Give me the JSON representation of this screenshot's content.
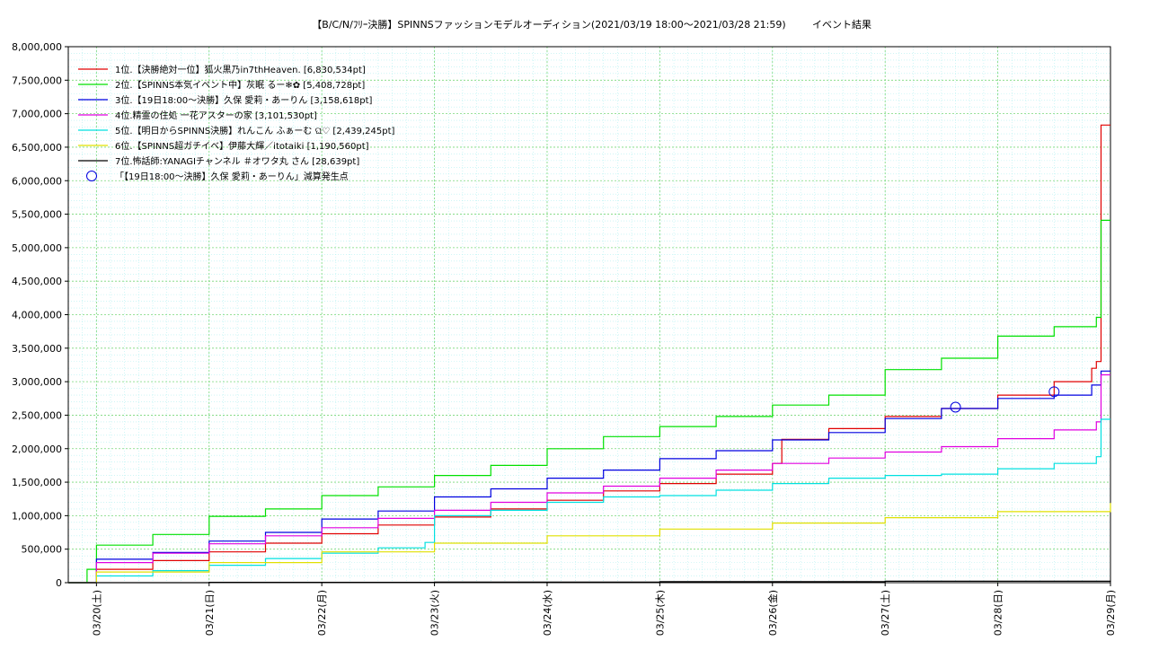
{
  "chart_data": {
    "type": "line",
    "title": "【B/C/N/ﾌﾘｰ決勝】SPINNSファッションモデルオーディション(2021/03/19 18:00～2021/03/28 21:59)",
    "subtitle": "イベント結果",
    "xlabel": "",
    "ylabel": "",
    "x_ticks": [
      "03/20(土)",
      "03/21(日)",
      "03/22(月)",
      "03/23(火)",
      "03/24(水)",
      "03/25(木)",
      "03/26(金)",
      "03/27(土)",
      "03/28(日)",
      "03/29(月)"
    ],
    "xlim": [
      "03/19 18:00",
      "03/29 00:00"
    ],
    "ylim": [
      0,
      8000000
    ],
    "y_ticks": [
      "0",
      "500,000",
      "1,000,000",
      "1,500,000",
      "2,000,000",
      "2,500,000",
      "3,000,000",
      "3,500,000",
      "4,000,000",
      "4,500,000",
      "5,000,000",
      "5,500,000",
      "6,000,000",
      "6,500,000",
      "7,000,000",
      "7,500,000",
      "8,000,000"
    ],
    "grid": true,
    "legend_position": "top-left",
    "series": [
      {
        "name": "1位.【決勝絶対一位】狐火黒乃in7thHeaven. [6,830,534pt]",
        "color": "#e00000",
        "x": [
          "03/19 18:00",
          "03/20 00:00",
          "03/20 12:00",
          "03/21 00:00",
          "03/21 12:00",
          "03/22 00:00",
          "03/22 12:00",
          "03/23 00:00",
          "03/23 12:00",
          "03/24 00:00",
          "03/24 12:00",
          "03/25 00:00",
          "03/25 12:00",
          "03/26 00:00",
          "03/26 02:00",
          "03/26 12:00",
          "03/27 00:00",
          "03/27 12:00",
          "03/28 00:00",
          "03/28 12:00",
          "03/28 20:00",
          "03/28 21:00",
          "03/28 22:00",
          "03/29 00:00"
        ],
        "values": [
          0,
          200000,
          330000,
          460000,
          590000,
          730000,
          860000,
          980000,
          1100000,
          1230000,
          1370000,
          1480000,
          1620000,
          1780000,
          2140000,
          2300000,
          2480000,
          2600000,
          2800000,
          3000000,
          3200000,
          3300000,
          6830534,
          6830534
        ]
      },
      {
        "name": "2位.【SPINNS本気イベント中】灰眠 るー❄✿ [5,408,728pt]",
        "color": "#00e000",
        "x": [
          "03/19 18:00",
          "03/19 22:00",
          "03/20 00:00",
          "03/20 12:00",
          "03/21 00:00",
          "03/21 12:00",
          "03/22 00:00",
          "03/22 12:00",
          "03/23 00:00",
          "03/23 12:00",
          "03/24 00:00",
          "03/24 12:00",
          "03/25 00:00",
          "03/25 12:00",
          "03/26 00:00",
          "03/26 12:00",
          "03/27 00:00",
          "03/27 12:00",
          "03/28 00:00",
          "03/28 12:00",
          "03/28 21:00",
          "03/28 22:00",
          "03/29 00:00"
        ],
        "values": [
          0,
          200000,
          560000,
          720000,
          990000,
          1100000,
          1300000,
          1430000,
          1600000,
          1750000,
          2000000,
          2180000,
          2330000,
          2480000,
          2650000,
          2800000,
          3180000,
          3350000,
          3680000,
          3820000,
          3960000,
          5408728,
          5408728
        ]
      },
      {
        "name": "3位.【19日18:00～決勝】久保 愛莉・あーりん [3,158,618pt]",
        "color": "#0000e0",
        "x": [
          "03/19 18:00",
          "03/20 00:00",
          "03/20 12:00",
          "03/21 00:00",
          "03/21 12:00",
          "03/22 00:00",
          "03/22 12:00",
          "03/23 00:00",
          "03/23 12:00",
          "03/24 00:00",
          "03/24 12:00",
          "03/25 00:00",
          "03/25 12:00",
          "03/26 00:00",
          "03/26 12:00",
          "03/27 00:00",
          "03/27 12:00",
          "03/28 00:00",
          "03/28 12:00",
          "03/28 20:00",
          "03/28 22:00",
          "03/29 00:00"
        ],
        "values": [
          0,
          350000,
          450000,
          620000,
          750000,
          950000,
          1070000,
          1280000,
          1400000,
          1560000,
          1680000,
          1850000,
          1970000,
          2130000,
          2240000,
          2450000,
          2600000,
          2750000,
          2800000,
          2950000,
          3158618,
          3158618
        ]
      },
      {
        "name": "4位.精霊の住処 一花アスターの家 [3,101,530pt]",
        "color": "#e000e0",
        "x": [
          "03/19 18:00",
          "03/20 00:00",
          "03/20 12:00",
          "03/21 00:00",
          "03/21 12:00",
          "03/22 00:00",
          "03/22 12:00",
          "03/23 00:00",
          "03/23 12:00",
          "03/24 00:00",
          "03/24 12:00",
          "03/25 00:00",
          "03/25 12:00",
          "03/26 00:00",
          "03/26 12:00",
          "03/27 00:00",
          "03/27 12:00",
          "03/28 00:00",
          "03/28 12:00",
          "03/28 21:00",
          "03/28 22:00",
          "03/29 00:00"
        ],
        "values": [
          0,
          300000,
          440000,
          580000,
          700000,
          820000,
          960000,
          1080000,
          1200000,
          1340000,
          1440000,
          1560000,
          1680000,
          1780000,
          1860000,
          1950000,
          2030000,
          2150000,
          2280000,
          2400000,
          3101530,
          3101530
        ]
      },
      {
        "name": "5位.【明日からSPINNS決勝】れんこん ふぁーむ ଘ♡ [2,439,245pt]",
        "color": "#00e0e0",
        "x": [
          "03/19 18:00",
          "03/20 00:00",
          "03/20 12:00",
          "03/21 00:00",
          "03/21 12:00",
          "03/22 00:00",
          "03/22 12:00",
          "03/22 22:00",
          "03/23 00:00",
          "03/23 12:00",
          "03/24 00:00",
          "03/24 12:00",
          "03/25 00:00",
          "03/25 12:00",
          "03/26 00:00",
          "03/26 12:00",
          "03/27 00:00",
          "03/27 12:00",
          "03/28 00:00",
          "03/28 12:00",
          "03/28 21:00",
          "03/28 22:00",
          "03/29 00:00"
        ],
        "values": [
          0,
          100000,
          180000,
          260000,
          360000,
          440000,
          520000,
          600000,
          1000000,
          1080000,
          1200000,
          1280000,
          1300000,
          1380000,
          1480000,
          1560000,
          1600000,
          1620000,
          1700000,
          1780000,
          1880000,
          2439245,
          2439245
        ]
      },
      {
        "name": "6位.【SPINNS超ガチイベ】伊藤大輝／itotaiki [1,190,560pt]",
        "color": "#e0e000",
        "x": [
          "03/19 18:00",
          "03/20 00:00",
          "03/21 00:00",
          "03/22 00:00",
          "03/23 00:00",
          "03/24 00:00",
          "03/25 00:00",
          "03/26 00:00",
          "03/27 00:00",
          "03/28 00:00",
          "03/29 00:00"
        ],
        "values": [
          0,
          160000,
          300000,
          460000,
          590000,
          700000,
          800000,
          890000,
          970000,
          1060000,
          1190560
        ]
      },
      {
        "name": "7位.怖話師:YANAGIチャンネル ＃オワタ丸 さん [28,639pt]",
        "color": "#000000",
        "x": [
          "03/19 18:00",
          "03/21 00:00",
          "03/23 00:00",
          "03/25 00:00",
          "03/27 00:00",
          "03/29 00:00"
        ],
        "values": [
          0,
          5000,
          10000,
          15000,
          22000,
          28639
        ]
      }
    ],
    "markers": {
      "name": "「【19日18:00～決勝】久保 愛莉・あーりん」減算発生点",
      "color": "#0000e0",
      "points": [
        {
          "x": "03/27 15:00",
          "y": 2620000
        },
        {
          "x": "03/28 12:00",
          "y": 2850000
        }
      ]
    }
  }
}
